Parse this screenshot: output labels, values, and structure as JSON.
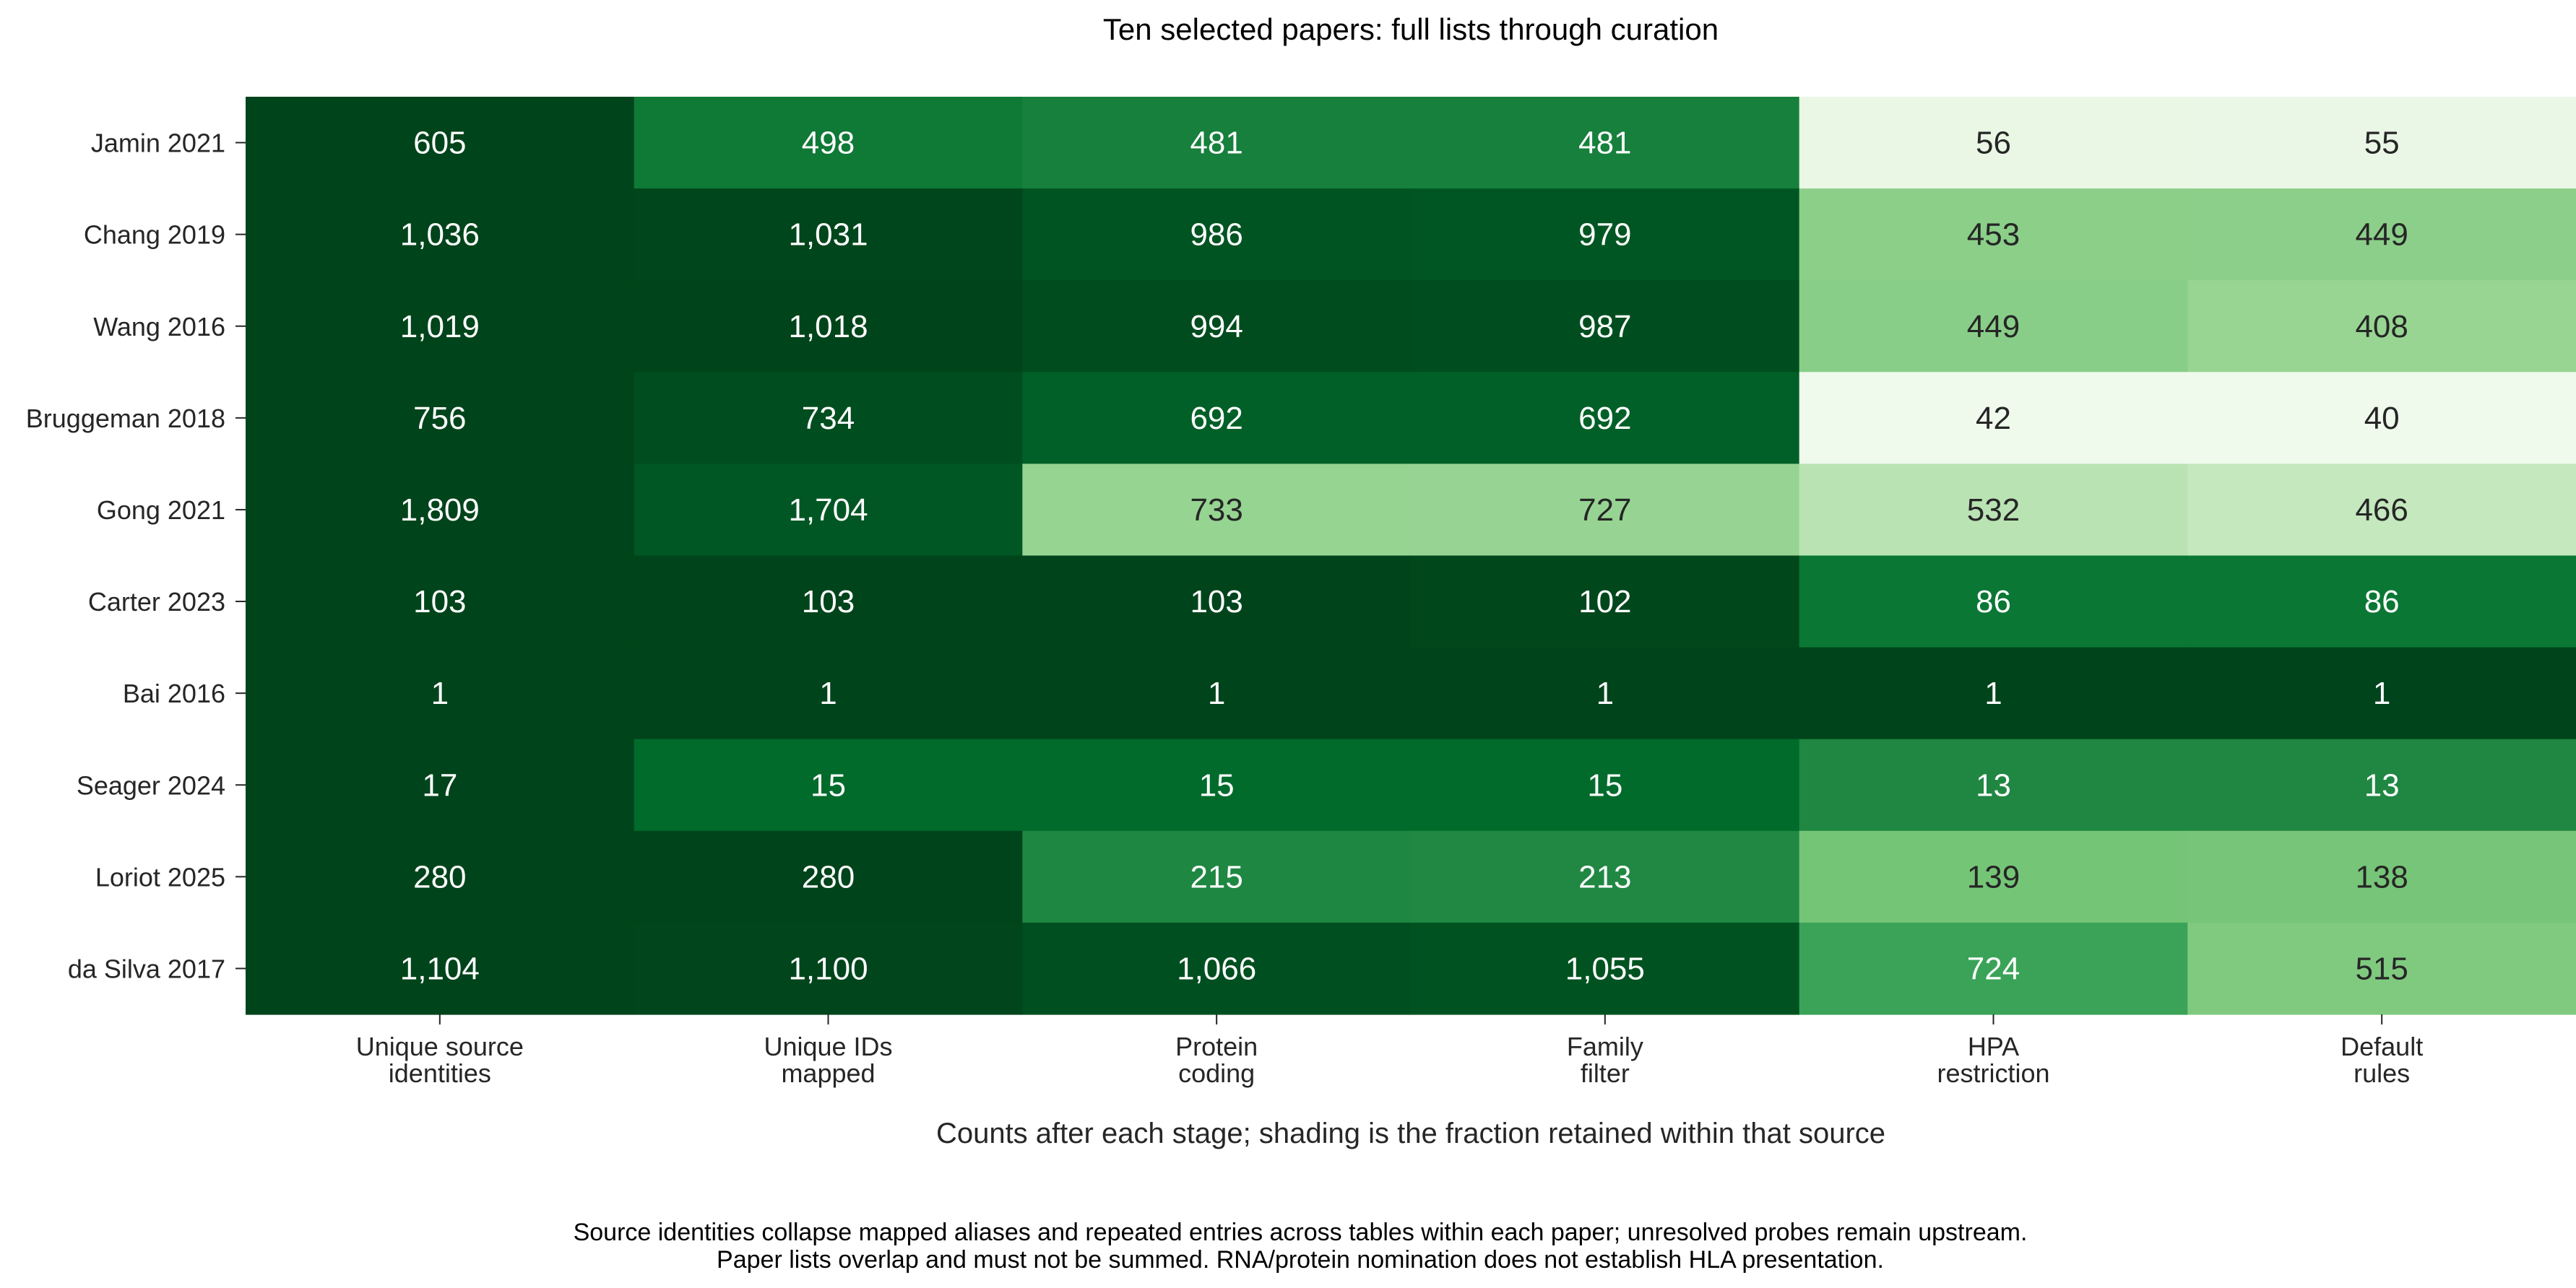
{
  "chart_data": {
    "type": "heatmap",
    "title": "Ten selected papers: full lists through curation",
    "xlabel": "Counts after each stage; shading is the fraction retained within that source",
    "ylabel": "",
    "colormap": "Greens",
    "color_value": "fraction retained within source",
    "rows": [
      "Jamin 2021",
      "Chang 2019",
      "Wang 2016",
      "Bruggeman 2018",
      "Gong 2021",
      "Carter 2023",
      "Bai 2016",
      "Seager 2024",
      "Loriot 2025",
      "da Silva 2017"
    ],
    "columns": [
      [
        "Unique source",
        "identities"
      ],
      [
        "Unique IDs",
        "mapped"
      ],
      [
        "Protein",
        "coding"
      ],
      [
        "Family",
        "filter"
      ],
      [
        "HPA",
        "restriction"
      ],
      [
        "Default",
        "rules"
      ]
    ],
    "values": [
      [
        605,
        498,
        481,
        481,
        56,
        55
      ],
      [
        1036,
        1031,
        986,
        979,
        453,
        449
      ],
      [
        1019,
        1018,
        994,
        987,
        449,
        408
      ],
      [
        756,
        734,
        692,
        692,
        42,
        40
      ],
      [
        1809,
        1704,
        733,
        727,
        532,
        466
      ],
      [
        103,
        103,
        103,
        102,
        86,
        86
      ],
      [
        1,
        1,
        1,
        1,
        1,
        1
      ],
      [
        17,
        15,
        15,
        15,
        13,
        13
      ],
      [
        280,
        280,
        215,
        213,
        139,
        138
      ],
      [
        1104,
        1100,
        1066,
        1055,
        724,
        515
      ]
    ],
    "labels": [
      [
        "605",
        "498",
        "481",
        "481",
        "56",
        "55"
      ],
      [
        "1,036",
        "1,031",
        "986",
        "979",
        "453",
        "449"
      ],
      [
        "1,019",
        "1,018",
        "994",
        "987",
        "449",
        "408"
      ],
      [
        "756",
        "734",
        "692",
        "692",
        "42",
        "40"
      ],
      [
        "1,809",
        "1,704",
        "733",
        "727",
        "532",
        "466"
      ],
      [
        "103",
        "103",
        "103",
        "102",
        "86",
        "86"
      ],
      [
        "1",
        "1",
        "1",
        "1",
        "1",
        "1"
      ],
      [
        "17",
        "15",
        "15",
        "15",
        "13",
        "13"
      ],
      [
        "280",
        "280",
        "215",
        "213",
        "139",
        "138"
      ],
      [
        "1,104",
        "1,100",
        "1,066",
        "1,055",
        "724",
        "515"
      ]
    ]
  },
  "footnote": [
    "Source identities collapse mapped aliases and repeated entries across tables within each paper; unresolved probes remain upstream.",
    "Paper lists overlap and must not be summed. RNA/protein nomination does not establish HLA presentation."
  ]
}
